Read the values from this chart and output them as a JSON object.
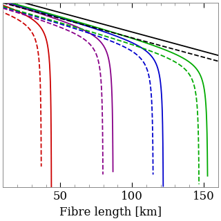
{
  "xlabel": "Fibre length [km]",
  "xlim": [
    10,
    160
  ],
  "ylim": [
    -10.5,
    -1.0
  ],
  "x_ticks": [
    50,
    100,
    150
  ],
  "background": "#ffffff",
  "curves": [
    {
      "color": "#cc0000",
      "cutoff_solid": 44,
      "cutoff_dashed": 37,
      "slope": 0.2,
      "intercept_solid": -0.5,
      "intercept_dashed": -0.8,
      "steepness": 3.5
    },
    {
      "color": "#880088",
      "cutoff_solid": 87,
      "cutoff_dashed": 80,
      "slope": 0.2,
      "intercept_solid": -0.5,
      "intercept_dashed": -0.8,
      "steepness": 3.5
    },
    {
      "color": "#0000cc",
      "cutoff_solid": 122,
      "cutoff_dashed": 115,
      "slope": 0.2,
      "intercept_solid": -0.5,
      "intercept_dashed": -0.8,
      "steepness": 3.5
    },
    {
      "color": "#00aa00",
      "cutoff_solid": 153,
      "cutoff_dashed": 147,
      "slope": 0.2,
      "intercept_solid": -0.5,
      "intercept_dashed": -0.8,
      "steepness": 3.5
    },
    {
      "color": "#000000",
      "cutoff_solid": 999,
      "cutoff_dashed": 999,
      "slope": 0.2,
      "intercept_solid": -0.5,
      "intercept_dashed": -0.8,
      "steepness": 3.5
    }
  ],
  "linewidth": 1.3
}
